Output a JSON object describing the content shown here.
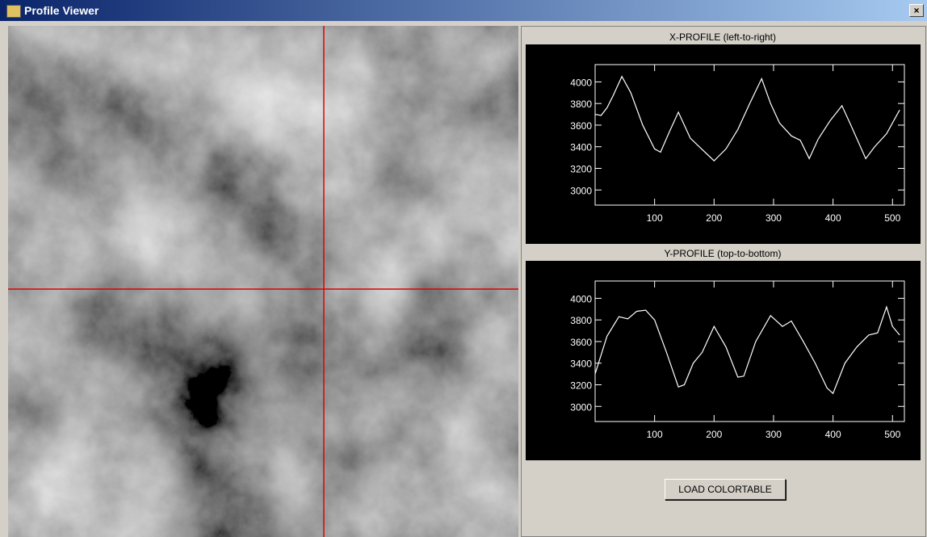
{
  "window": {
    "title": "Profile Viewer"
  },
  "button": {
    "label": "LOAD COLORTABLE"
  },
  "chart_data": [
    {
      "type": "line",
      "title": "X-PROFILE (left-to-right)",
      "x": [
        0,
        10,
        20,
        30,
        45,
        60,
        80,
        100,
        110,
        125,
        140,
        150,
        160,
        175,
        200,
        220,
        240,
        260,
        280,
        295,
        310,
        330,
        345,
        360,
        375,
        395,
        415,
        430,
        455,
        470,
        490,
        512
      ],
      "series": [
        {
          "color": "#ffffff",
          "values": [
            3700,
            3690,
            3760,
            3870,
            4050,
            3900,
            3600,
            3380,
            3350,
            3540,
            3720,
            3600,
            3480,
            3400,
            3270,
            3380,
            3560,
            3800,
            4030,
            3800,
            3620,
            3500,
            3460,
            3290,
            3470,
            3640,
            3780,
            3600,
            3290,
            3400,
            3520,
            3740
          ]
        }
      ],
      "xlim": [
        0,
        520
      ],
      "xticks": [
        100,
        200,
        300,
        400,
        500
      ],
      "ylim": [
        2860,
        4160
      ],
      "yticks": [
        3000,
        3200,
        3400,
        3600,
        3800,
        4000
      ]
    },
    {
      "type": "line",
      "title": "Y-PROFILE (top-to-bottom)",
      "x": [
        0,
        20,
        40,
        55,
        70,
        85,
        100,
        120,
        140,
        150,
        165,
        180,
        200,
        220,
        240,
        250,
        270,
        295,
        315,
        330,
        350,
        370,
        390,
        400,
        420,
        440,
        460,
        475,
        490,
        500,
        512
      ],
      "series": [
        {
          "color": "#ffffff",
          "values": [
            3300,
            3650,
            3830,
            3810,
            3880,
            3890,
            3800,
            3500,
            3180,
            3200,
            3400,
            3500,
            3740,
            3550,
            3270,
            3280,
            3600,
            3840,
            3740,
            3790,
            3600,
            3400,
            3170,
            3120,
            3400,
            3550,
            3660,
            3680,
            3920,
            3740,
            3660
          ]
        }
      ],
      "xlim": [
        0,
        520
      ],
      "xticks": [
        100,
        200,
        300,
        400,
        500
      ],
      "ylim": [
        2860,
        4160
      ],
      "yticks": [
        3000,
        3200,
        3400,
        3600,
        3800,
        4000
      ]
    }
  ]
}
